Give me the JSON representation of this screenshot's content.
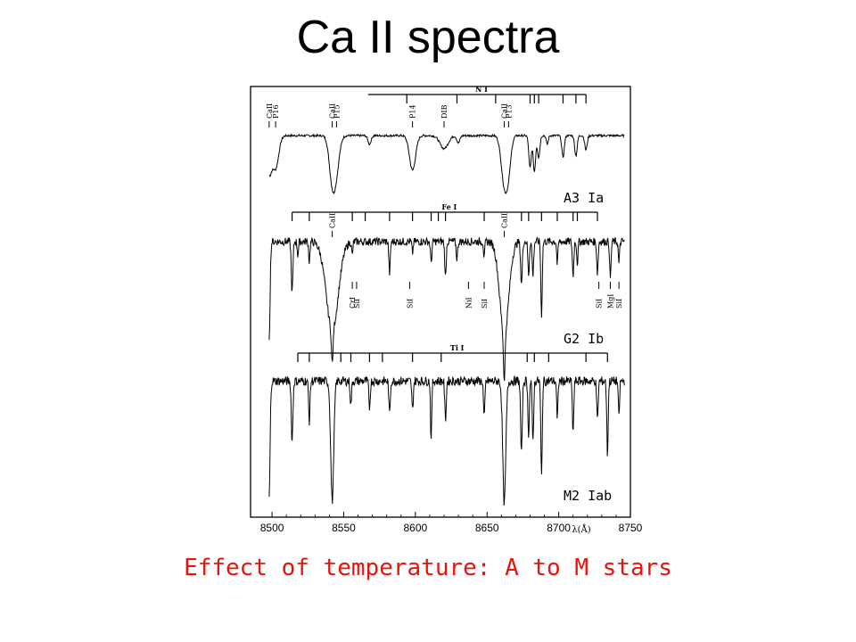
{
  "title": "Ca II spectra",
  "caption": "Effect of temperature: A to M stars",
  "colors": {
    "caption": "#e8140c",
    "ink": "#000000"
  },
  "chart_data": {
    "type": "line",
    "xlabel": "λ(Å)",
    "xlim": [
      8490,
      8750
    ],
    "xticks": [
      8500,
      8550,
      8600,
      8650,
      8700,
      8750
    ],
    "grid": false,
    "panels": [
      {
        "name": "A3 Ia",
        "continuum": 0.85,
        "lines": [
          {
            "x": 8498,
            "depth": 0.5,
            "w": 2.5
          },
          {
            "x": 8502.5,
            "depth": 0.45,
            "w": 3
          },
          {
            "x": 8542,
            "depth": 0.6,
            "w": 3
          },
          {
            "x": 8545,
            "depth": 0.4,
            "w": 3
          },
          {
            "x": 8568,
            "depth": 0.12,
            "w": 1.5
          },
          {
            "x": 8598,
            "depth": 0.48,
            "w": 3
          },
          {
            "x": 8620,
            "depth": 0.18,
            "w": 4
          },
          {
            "x": 8630,
            "depth": 0.1,
            "w": 1.5
          },
          {
            "x": 8662,
            "depth": 0.65,
            "w": 3
          },
          {
            "x": 8665,
            "depth": 0.4,
            "w": 2.5
          },
          {
            "x": 8680,
            "depth": 0.45,
            "w": 1.2
          },
          {
            "x": 8683,
            "depth": 0.5,
            "w": 1.2
          },
          {
            "x": 8686,
            "depth": 0.3,
            "w": 1.2
          },
          {
            "x": 8692,
            "depth": 0.12,
            "w": 1
          },
          {
            "x": 8703,
            "depth": 0.3,
            "w": 1.2
          },
          {
            "x": 8712,
            "depth": 0.28,
            "w": 1.2
          },
          {
            "x": 8719,
            "depth": 0.2,
            "w": 1.2
          }
        ]
      },
      {
        "name": "G2 Ib",
        "continuum": 0.85,
        "lines": [
          {
            "x": 8498,
            "depth": 0.85,
            "w": 0.9
          },
          {
            "x": 8514,
            "depth": 0.45,
            "w": 0.8
          },
          {
            "x": 8518,
            "depth": 0.12,
            "w": 0.6
          },
          {
            "x": 8526,
            "depth": 0.18,
            "w": 0.6
          },
          {
            "x": 8542,
            "depth": 0.78,
            "w": 6
          },
          {
            "x": 8542,
            "depth": 0.3,
            "w": 0.8
          },
          {
            "x": 8556,
            "depth": 0.12,
            "w": 0.6
          },
          {
            "x": 8582,
            "depth": 0.28,
            "w": 0.7
          },
          {
            "x": 8598,
            "depth": 0.1,
            "w": 0.6
          },
          {
            "x": 8611,
            "depth": 0.18,
            "w": 0.7
          },
          {
            "x": 8621,
            "depth": 0.32,
            "w": 0.7
          },
          {
            "x": 8629,
            "depth": 0.15,
            "w": 0.7
          },
          {
            "x": 8648,
            "depth": 0.14,
            "w": 0.6
          },
          {
            "x": 8662,
            "depth": 0.82,
            "w": 4.5
          },
          {
            "x": 8662,
            "depth": 0.4,
            "w": 0.8
          },
          {
            "x": 8674,
            "depth": 0.38,
            "w": 0.8
          },
          {
            "x": 8679,
            "depth": 0.3,
            "w": 0.7
          },
          {
            "x": 8682,
            "depth": 0.3,
            "w": 0.7
          },
          {
            "x": 8688,
            "depth": 0.65,
            "w": 0.7
          },
          {
            "x": 8699,
            "depth": 0.2,
            "w": 0.6
          },
          {
            "x": 8710,
            "depth": 0.3,
            "w": 0.7
          },
          {
            "x": 8713,
            "depth": 0.2,
            "w": 0.6
          },
          {
            "x": 8727,
            "depth": 0.28,
            "w": 0.7
          },
          {
            "x": 8736,
            "depth": 0.32,
            "w": 0.7
          },
          {
            "x": 8742,
            "depth": 0.2,
            "w": 0.6
          }
        ]
      },
      {
        "name": "M2 Iab",
        "continuum": 0.85,
        "lines": [
          {
            "x": 8498,
            "depth": 0.88,
            "w": 0.9
          },
          {
            "x": 8514,
            "depth": 0.45,
            "w": 0.8
          },
          {
            "x": 8526,
            "depth": 0.3,
            "w": 0.7
          },
          {
            "x": 8542,
            "depth": 0.9,
            "w": 1.5
          },
          {
            "x": 8555,
            "depth": 0.18,
            "w": 0.7
          },
          {
            "x": 8568,
            "depth": 0.2,
            "w": 0.7
          },
          {
            "x": 8582,
            "depth": 0.25,
            "w": 0.7
          },
          {
            "x": 8598,
            "depth": 0.22,
            "w": 0.7
          },
          {
            "x": 8611,
            "depth": 0.45,
            "w": 0.6
          },
          {
            "x": 8621,
            "depth": 0.3,
            "w": 0.7
          },
          {
            "x": 8648,
            "depth": 0.28,
            "w": 0.7
          },
          {
            "x": 8662,
            "depth": 0.92,
            "w": 1.5
          },
          {
            "x": 8674,
            "depth": 0.55,
            "w": 0.8
          },
          {
            "x": 8679,
            "depth": 0.4,
            "w": 0.7
          },
          {
            "x": 8682,
            "depth": 0.45,
            "w": 0.7
          },
          {
            "x": 8688,
            "depth": 0.72,
            "w": 0.7
          },
          {
            "x": 8699,
            "depth": 0.3,
            "w": 0.6
          },
          {
            "x": 8710,
            "depth": 0.38,
            "w": 0.7
          },
          {
            "x": 8727,
            "depth": 0.3,
            "w": 0.7
          },
          {
            "x": 8734,
            "depth": 0.55,
            "w": 0.7
          },
          {
            "x": 8742,
            "depth": 0.28,
            "w": 0.6
          }
        ]
      }
    ],
    "multiplet_bars": [
      {
        "label": "N I",
        "panel": 0,
        "x_start": 8567,
        "x_end": 8719,
        "ticks": [
          8594,
          8629,
          8656,
          8680,
          8683,
          8686,
          8703,
          8712,
          8719
        ]
      },
      {
        "label": "Fe I",
        "panel": 1,
        "x_start": 8514,
        "x_end": 8727,
        "ticks": [
          8514,
          8526,
          8556,
          8565,
          8582,
          8598,
          8611,
          8616,
          8621,
          8648,
          8674,
          8679,
          8688,
          8699,
          8710,
          8713,
          8727
        ]
      },
      {
        "label": "Ti I",
        "panel": 2,
        "x_start": 8518,
        "x_end": 8734,
        "ticks": [
          8518,
          8526,
          8548,
          8555,
          8568,
          8577,
          8598,
          8618,
          8678,
          8683,
          8693,
          8719,
          8734
        ]
      }
    ],
    "line_ids": [
      {
        "label": "CaII",
        "panel": 0,
        "x": 8498,
        "pos": "above"
      },
      {
        "label": "P16",
        "panel": 0,
        "x": 8502.5,
        "pos": "above"
      },
      {
        "label": "CaII",
        "panel": 0,
        "x": 8542,
        "pos": "above"
      },
      {
        "label": "P15",
        "panel": 0,
        "x": 8545,
        "pos": "above"
      },
      {
        "label": "P14",
        "panel": 0,
        "x": 8598,
        "pos": "above"
      },
      {
        "label": "DIB",
        "panel": 0,
        "x": 8620,
        "pos": "above"
      },
      {
        "label": "CaII",
        "panel": 0,
        "x": 8662,
        "pos": "above"
      },
      {
        "label": "P13",
        "panel": 0,
        "x": 8665,
        "pos": "above"
      },
      {
        "label": "CaII",
        "panel": 1,
        "x": 8542,
        "pos": "above"
      },
      {
        "label": "CaII",
        "panel": 1,
        "x": 8662,
        "pos": "above"
      },
      {
        "label": "CrI",
        "panel": 1,
        "x": 8556,
        "pos": "below"
      },
      {
        "label": "SiI",
        "panel": 1,
        "x": 8559,
        "pos": "below"
      },
      {
        "label": "SiI",
        "panel": 1,
        "x": 8596,
        "pos": "below"
      },
      {
        "label": "NiI",
        "panel": 1,
        "x": 8637,
        "pos": "below"
      },
      {
        "label": "SiI",
        "panel": 1,
        "x": 8648,
        "pos": "below"
      },
      {
        "label": "SiI",
        "panel": 1,
        "x": 8728,
        "pos": "below"
      },
      {
        "label": "MgI",
        "panel": 1,
        "x": 8736,
        "pos": "below"
      },
      {
        "label": "SiI",
        "panel": 1,
        "x": 8742,
        "pos": "below"
      }
    ]
  }
}
